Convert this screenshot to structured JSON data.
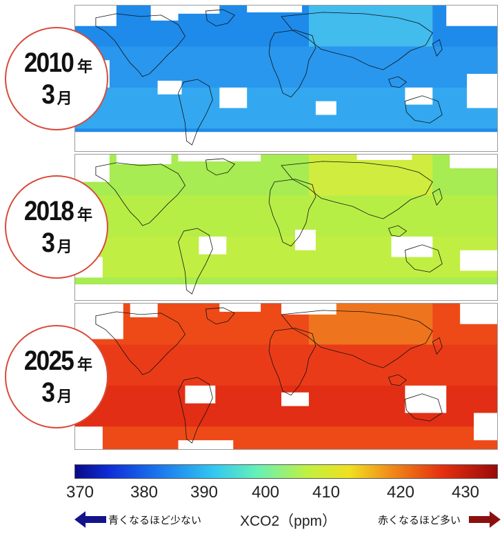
{
  "panels": [
    {
      "year": "2010",
      "year_unit": "年",
      "month": "3",
      "month_unit": "月",
      "field_colors": [
        "#1e8aea",
        "#2f9ef0",
        "#3fb8f2",
        "#56d6ee"
      ]
    },
    {
      "year": "2018",
      "year_unit": "年",
      "month": "3",
      "month_unit": "月",
      "field_colors": [
        "#a6ec52",
        "#c0f040",
        "#cff03c",
        "#e6ec34"
      ]
    },
    {
      "year": "2025",
      "year_unit": "年",
      "month": "3",
      "month_unit": "月",
      "field_colors": [
        "#ee4a18",
        "#e8321a",
        "#dc1e12",
        "#f08a22"
      ]
    }
  ],
  "colorbar": {
    "min": 370,
    "max": 433,
    "tick_labels": [
      "370",
      "380",
      "390",
      "400",
      "410",
      "420",
      "430"
    ],
    "colors": [
      "#0a0a88",
      "#1a78ee",
      "#66f0b8",
      "#f0e020",
      "#e43010",
      "#9a0a08"
    ]
  },
  "legend": {
    "less_label": "青くなるほど少ない",
    "center_label": "XCO2（ppm）",
    "more_label": "赤くなるほど多い",
    "less_arrow_color": "#13138a",
    "more_arrow_color": "#8a1010"
  },
  "badge_border_color": "#d84a3a"
}
